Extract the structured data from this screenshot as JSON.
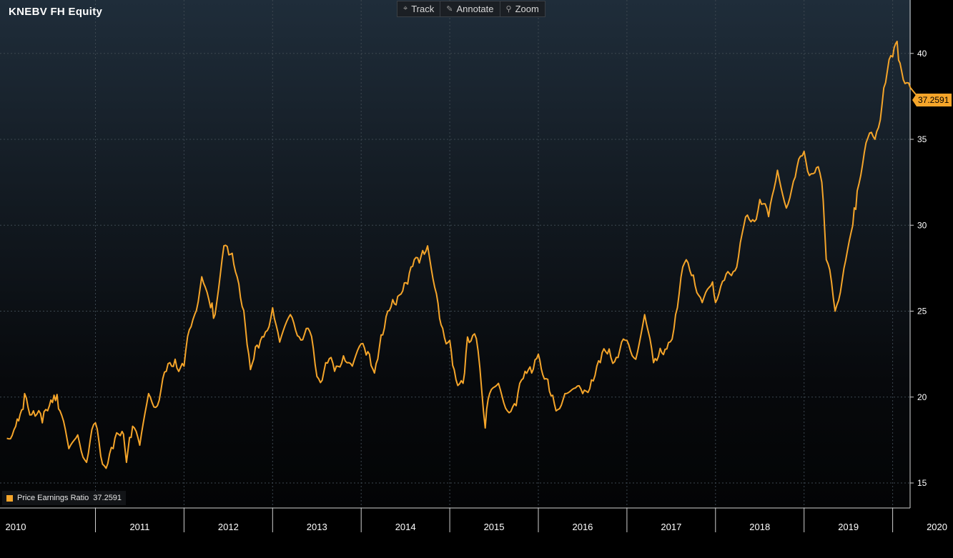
{
  "title": "KNEBV FH Equity",
  "toolbar": {
    "track": "Track",
    "annotate": "Annotate",
    "zoom": "Zoom"
  },
  "legend": {
    "label": "Price Earnings Ratio",
    "value": "37.2591"
  },
  "colors": {
    "series": "#f5a52a",
    "background_top": "#1f2d3a",
    "background_bottom": "#030405",
    "text": "#ffffff"
  },
  "chart_data": {
    "type": "line",
    "title": "KNEBV FH Equity",
    "xlabel": "",
    "ylabel": "",
    "ylim": [
      14,
      43
    ],
    "y_ticks": [
      15,
      20,
      25,
      30,
      35,
      40
    ],
    "x_tick_labels": [
      "2010",
      "2011",
      "2012",
      "2013",
      "2014",
      "2015",
      "2016",
      "2017",
      "2018",
      "2019",
      "2020"
    ],
    "last_value": "37.2591",
    "grid": true,
    "legend_position": "bottom-left",
    "series": [
      {
        "name": "Price Earnings Ratio",
        "x": [
          2010.0,
          2010.1,
          2010.15,
          2010.2,
          2010.3,
          2010.4,
          2010.48,
          2010.55,
          2010.6,
          2010.7,
          2010.8,
          2010.9,
          2011.0,
          2011.1,
          2011.2,
          2011.3,
          2011.35,
          2011.42,
          2011.5,
          2011.6,
          2011.7,
          2011.8,
          2011.9,
          2012.0,
          2012.1,
          2012.2,
          2012.3,
          2012.35,
          2012.45,
          2012.6,
          2012.75,
          2012.9,
          2013.0,
          2013.08,
          2013.2,
          2013.3,
          2013.4,
          2013.5,
          2013.6,
          2013.7,
          2013.8,
          2013.9,
          2014.0,
          2014.15,
          2014.3,
          2014.45,
          2014.6,
          2014.75,
          2014.85,
          2014.92,
          2015.0,
          2015.05,
          2015.15,
          2015.2,
          2015.3,
          2015.4,
          2015.45,
          2015.55,
          2015.65,
          2015.75,
          2015.85,
          2016.0,
          2016.05,
          2016.2,
          2016.3,
          2016.4,
          2016.5,
          2016.6,
          2016.7,
          2016.8,
          2016.9,
          2017.0,
          2017.1,
          2017.2,
          2017.3,
          2017.45,
          2017.55,
          2017.65,
          2017.75,
          2017.85,
          2017.95,
          2018.0,
          2018.1,
          2018.2,
          2018.3,
          2018.4,
          2018.5,
          2018.6,
          2018.7,
          2018.8,
          2018.9,
          2019.0,
          2019.1,
          2019.2,
          2019.25,
          2019.35,
          2019.45,
          2019.55,
          2019.6,
          2019.7,
          2019.8,
          2019.9,
          2020.0,
          2020.05,
          2020.1,
          2020.2,
          2020.28,
          2020.3
        ],
        "values": [
          17.6,
          18.3,
          19.0,
          20.2,
          19.2,
          18.5,
          19.5,
          19.8,
          19.2,
          17.0,
          17.8,
          16.2,
          18.5,
          16.0,
          17.0,
          18.0,
          16.2,
          18.3,
          17.2,
          20.2,
          19.5,
          21.5,
          22.2,
          21.8,
          24.5,
          27.0,
          25.2,
          24.8,
          28.8,
          27.0,
          21.6,
          23.5,
          25.2,
          23.2,
          24.8,
          23.5,
          24.0,
          21.2,
          22.0,
          21.5,
          22.4,
          21.8,
          23.1,
          21.4,
          25.0,
          26.0,
          28.0,
          28.8,
          26.0,
          24.0,
          23.3,
          21.6,
          20.8,
          23.5,
          23.4,
          18.2,
          20.2,
          20.8,
          19.2,
          19.5,
          21.5,
          22.5,
          21.3,
          19.2,
          20.2,
          20.5,
          20.2,
          21.0,
          22.0,
          22.8,
          22.3,
          23.3,
          22.2,
          24.8,
          22.0,
          22.8,
          24.8,
          27.8,
          27.1,
          25.5,
          26.5,
          25.5,
          26.8,
          27.3,
          29.5,
          30.2,
          31.5,
          30.5,
          33.2,
          31.0,
          32.8,
          34.3,
          33.0,
          32.5,
          28.0,
          25.0,
          27.5,
          30.0,
          32.0,
          34.8,
          35.0,
          38.0,
          39.8,
          40.7,
          39.0,
          38.0,
          37.5,
          37.26
        ]
      }
    ]
  }
}
